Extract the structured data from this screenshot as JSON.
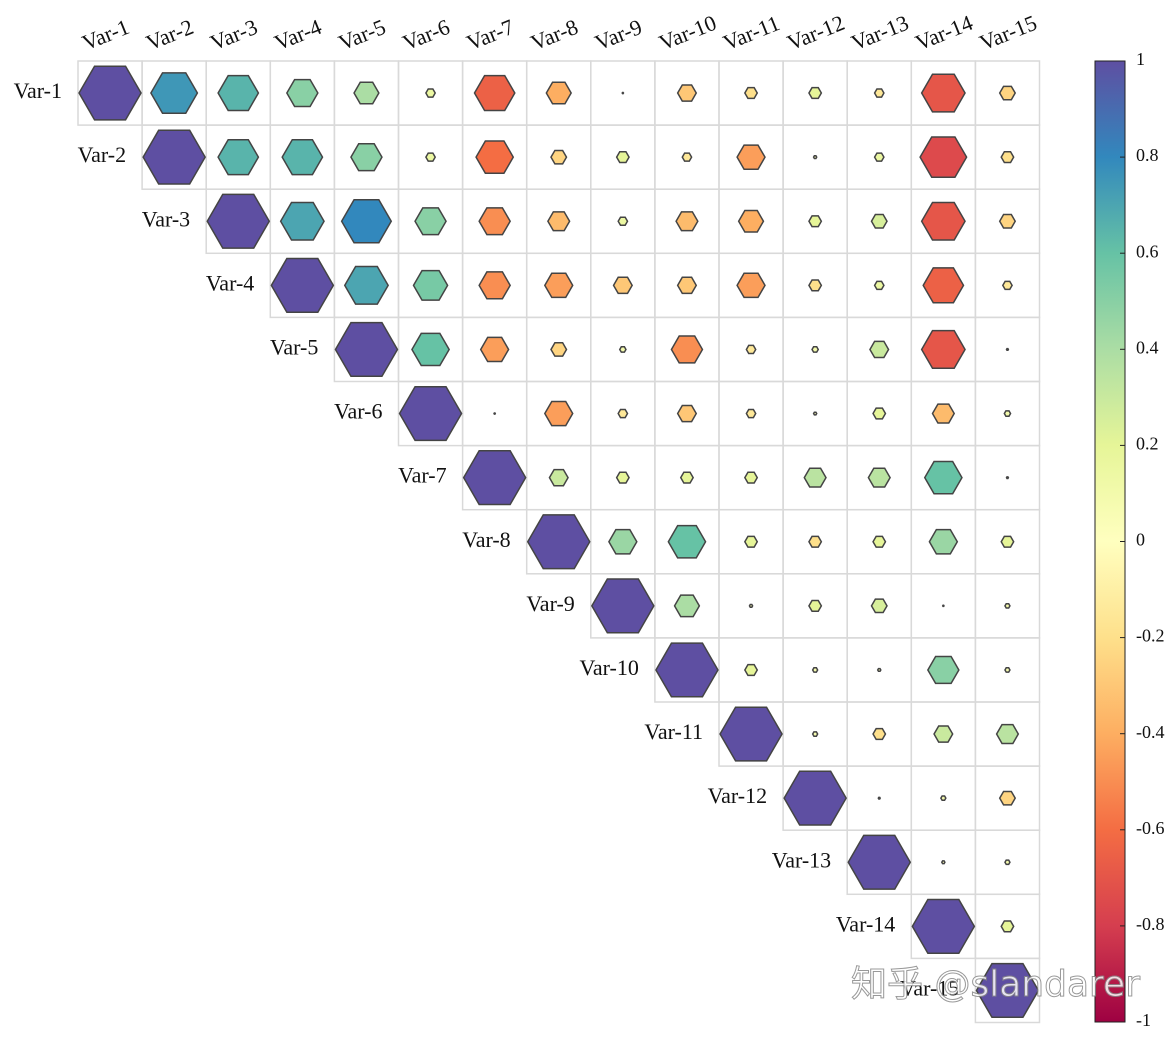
{
  "chart_data": {
    "type": "correlation-hexagon",
    "variables": [
      "Var-1",
      "Var-2",
      "Var-3",
      "Var-4",
      "Var-5",
      "Var-6",
      "Var-7",
      "Var-8",
      "Var-9",
      "Var-10",
      "Var-11",
      "Var-12",
      "Var-13",
      "Var-14",
      "Var-15"
    ],
    "values": [
      [
        1,
        0.75,
        0.65,
        0.5,
        0.4,
        0.15,
        -0.65,
        -0.4,
        0.02,
        -0.3,
        -0.2,
        0.2,
        -0.15,
        -0.7,
        -0.25
      ],
      [
        null,
        1,
        0.65,
        0.65,
        0.5,
        0.15,
        -0.6,
        -0.25,
        0.2,
        -0.15,
        -0.45,
        0.05,
        0.15,
        -0.75,
        -0.2
      ],
      [
        null,
        null,
        1,
        0.7,
        0.8,
        0.5,
        -0.5,
        -0.35,
        0.15,
        -0.35,
        -0.4,
        0.2,
        0.25,
        -0.7,
        -0.25
      ],
      [
        null,
        null,
        null,
        1,
        0.7,
        0.55,
        -0.5,
        -0.45,
        -0.3,
        -0.3,
        -0.45,
        -0.2,
        0.15,
        -0.65,
        -0.15
      ],
      [
        null,
        null,
        null,
        null,
        1,
        0.6,
        -0.45,
        -0.25,
        0.1,
        -0.5,
        -0.15,
        0.1,
        0.3,
        -0.7,
        0.03
      ],
      [
        null,
        null,
        null,
        null,
        null,
        1,
        0.02,
        -0.45,
        -0.15,
        -0.3,
        -0.15,
        0.05,
        0.2,
        -0.35,
        0.1
      ],
      [
        null,
        null,
        null,
        null,
        null,
        null,
        1,
        0.3,
        0.2,
        0.2,
        0.2,
        0.35,
        0.35,
        0.6,
        0.03
      ],
      [
        null,
        null,
        null,
        null,
        null,
        null,
        null,
        1,
        0.45,
        0.6,
        0.2,
        -0.2,
        0.2,
        0.45,
        0.2
      ],
      [
        null,
        null,
        null,
        null,
        null,
        null,
        null,
        null,
        1,
        0.4,
        0.05,
        0.2,
        0.25,
        0.02,
        0.08
      ],
      [
        null,
        null,
        null,
        null,
        null,
        null,
        null,
        null,
        null,
        1,
        0.2,
        0.08,
        0.05,
        0.5,
        0.08
      ],
      [
        null,
        null,
        null,
        null,
        null,
        null,
        null,
        null,
        null,
        null,
        1,
        0.08,
        -0.2,
        0.3,
        0.35
      ],
      [
        null,
        null,
        null,
        null,
        null,
        null,
        null,
        null,
        null,
        null,
        null,
        1,
        0.03,
        0.08,
        -0.25
      ],
      [
        null,
        null,
        null,
        null,
        null,
        null,
        null,
        null,
        null,
        null,
        null,
        null,
        1,
        0.05,
        0.08
      ],
      [
        null,
        null,
        null,
        null,
        null,
        null,
        null,
        null,
        null,
        null,
        null,
        null,
        null,
        1,
        0.2
      ],
      [
        null,
        null,
        null,
        null,
        null,
        null,
        null,
        null,
        null,
        null,
        null,
        null,
        null,
        null,
        1
      ]
    ],
    "colormap": [
      "#9e0142",
      "#d53e4f",
      "#f46d43",
      "#fdae61",
      "#fee08b",
      "#ffffbf",
      "#e6f598",
      "#abdda4",
      "#66c2a5",
      "#3288bd",
      "#5e4fa2"
    ],
    "clim": [
      -1,
      1
    ],
    "cticks": [
      1,
      0.8,
      0.6,
      0.4,
      0.2,
      0,
      -0.2,
      -0.4,
      -0.6,
      -0.8,
      -1
    ],
    "watermark": "知乎 @slandarer"
  }
}
